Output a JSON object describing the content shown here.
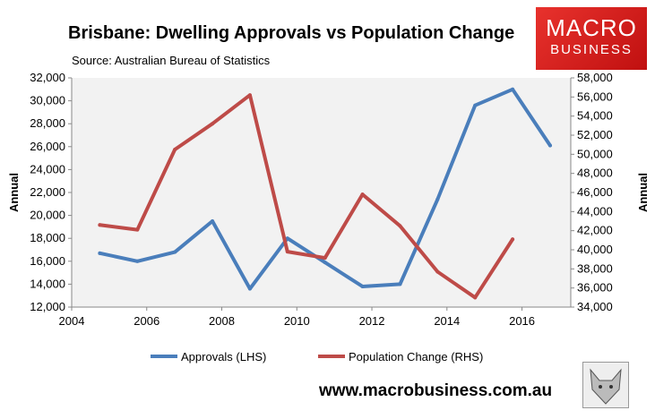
{
  "header": {
    "title": "Brisbane: Dwelling Approvals vs Population Change",
    "source": "Source: Australian Bureau of Statistics"
  },
  "logo": {
    "line1": "MACRO",
    "line2": "BUSINESS"
  },
  "footer": {
    "website": "www.macrobusiness.com.au"
  },
  "chart_data": {
    "type": "line",
    "title": "Brisbane: Dwelling Approvals vs Population Change",
    "xlabel": "",
    "ylabel": "Annual",
    "y2label": "Annual",
    "xlim": [
      2004,
      2017.3
    ],
    "xticks": [
      2004,
      2006,
      2008,
      2010,
      2012,
      2014,
      2016
    ],
    "ylim": [
      12000,
      32000
    ],
    "yticks": [
      12000,
      14000,
      16000,
      18000,
      20000,
      22000,
      24000,
      26000,
      28000,
      30000,
      32000
    ],
    "y2lim": [
      34000,
      58000
    ],
    "y2ticks": [
      34000,
      36000,
      38000,
      40000,
      42000,
      44000,
      46000,
      48000,
      50000,
      52000,
      54000,
      56000,
      58000
    ],
    "legend_position": "bottom",
    "grid": false,
    "series": [
      {
        "name": "Approvals (LHS)",
        "axis": "left",
        "color": "#4a7ebb",
        "x": [
          2004.75,
          2005.75,
          2006.75,
          2007.75,
          2008.75,
          2009.75,
          2010.75,
          2011.75,
          2012.75,
          2013.75,
          2014.75,
          2015.75,
          2016.75
        ],
        "values": [
          16700,
          16000,
          16800,
          19500,
          13600,
          18000,
          15900,
          13800,
          14000,
          21400,
          29600,
          31000,
          26100
        ]
      },
      {
        "name": "Population Change (RHS)",
        "axis": "right",
        "color": "#be4b48",
        "x": [
          2004.75,
          2005.75,
          2006.75,
          2007.75,
          2008.75,
          2009.75,
          2010.75,
          2011.75,
          2012.75,
          2013.75,
          2014.75,
          2015.75
        ],
        "values": [
          42600,
          42100,
          50500,
          53200,
          56200,
          39800,
          39150,
          45800,
          42500,
          37700,
          35000,
          41100
        ]
      }
    ]
  }
}
